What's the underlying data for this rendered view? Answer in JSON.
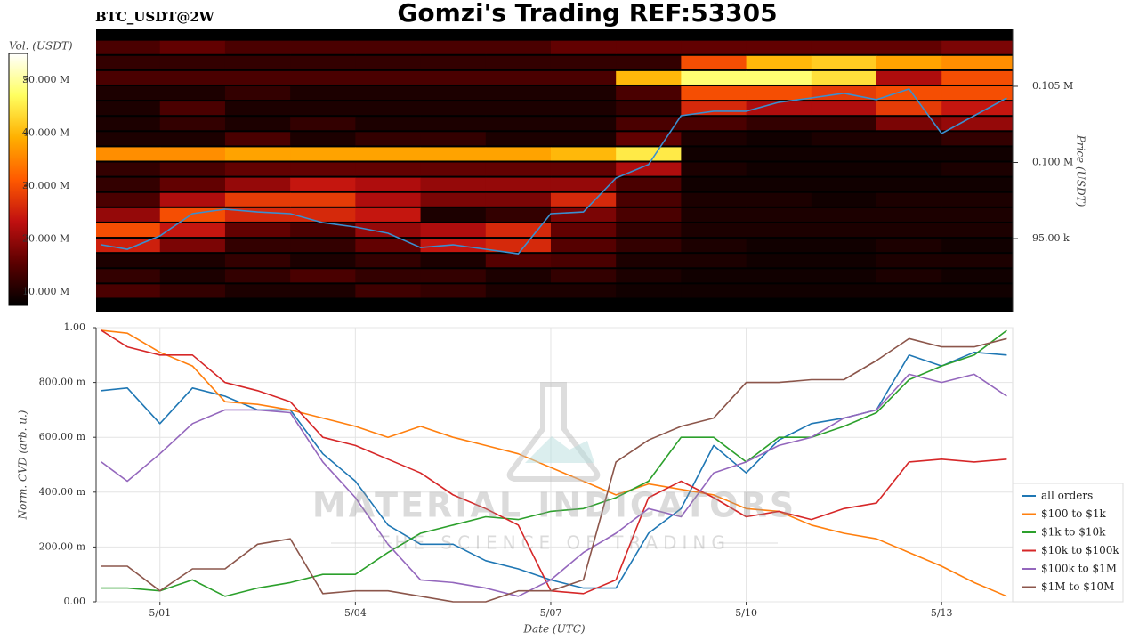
{
  "chart_data": [
    {
      "type": "heatmap",
      "title": "Gomzi's Trading REF:53305",
      "subtitle": "BTC_USDT@2W",
      "ylabel": "Price (USDT)",
      "colorbar_label": "Vol. (USDT)",
      "xlim": [
        0.02,
        14.09
      ],
      "ylim": [
        90150,
        108740
      ],
      "yticks": [
        {
          "value": 95000,
          "label": "95.00 k"
        },
        {
          "value": 100000,
          "label": "0.100 M"
        },
        {
          "value": 105000,
          "label": "0.105 M"
        }
      ],
      "clim": [
        7.5,
        55
      ],
      "colorbar_ticks": [
        {
          "value": 10,
          "label": "10.000 M"
        },
        {
          "value": 20,
          "label": "20.000 M"
        },
        {
          "value": 30,
          "label": "30.000 M"
        },
        {
          "value": 40,
          "label": "40.000 M"
        },
        {
          "value": 50,
          "label": "50.000 M"
        }
      ],
      "colormap": [
        "#000000",
        "#5a0000",
        "#c01010",
        "#ff5a00",
        "#ffb000",
        "#ffff60",
        "#ffffff"
      ],
      "x_bins": [
        0.02,
        1,
        2,
        3,
        4,
        5,
        6,
        7,
        8,
        9,
        10,
        11,
        12,
        13,
        14.09
      ],
      "y_bins": [
        91000,
        92000,
        93000,
        94000,
        95000,
        96000,
        97000,
        98000,
        99000,
        100000,
        101000,
        102000,
        103000,
        104000,
        105000,
        106000,
        107000,
        108000
      ],
      "z": [
        [
          14,
          12,
          10,
          10,
          13,
          12,
          10,
          10,
          9,
          9,
          9,
          9,
          9,
          9
        ],
        [
          12,
          10,
          12,
          14,
          12,
          12,
          10,
          12,
          10,
          9,
          9,
          9,
          10,
          9
        ],
        [
          10,
          10,
          12,
          10,
          12,
          10,
          15,
          14,
          10,
          10,
          9,
          9,
          10,
          10
        ],
        [
          25,
          18,
          12,
          12,
          16,
          24,
          26,
          15,
          12,
          10,
          9,
          9,
          10,
          9
        ],
        [
          30,
          24,
          16,
          14,
          20,
          22,
          26,
          16,
          12,
          10,
          10,
          10,
          10,
          10
        ],
        [
          20,
          30,
          26,
          26,
          24,
          10,
          12,
          18,
          14,
          10,
          10,
          10,
          10,
          10
        ],
        [
          14,
          22,
          28,
          28,
          22,
          18,
          18,
          26,
          14,
          10,
          10,
          9,
          10,
          10
        ],
        [
          12,
          16,
          20,
          24,
          22,
          20,
          20,
          20,
          14,
          9,
          9,
          9,
          9,
          9
        ],
        [
          12,
          14,
          16,
          16,
          16,
          16,
          16,
          16,
          22,
          10,
          9,
          9,
          9,
          10
        ],
        [
          36,
          36,
          38,
          38,
          38,
          38,
          38,
          40,
          45,
          9,
          9,
          9,
          9,
          9
        ],
        [
          10,
          10,
          14,
          10,
          12,
          12,
          10,
          10,
          16,
          10,
          9,
          10,
          10,
          12
        ],
        [
          10,
          12,
          10,
          12,
          10,
          10,
          10,
          10,
          14,
          14,
          12,
          12,
          18,
          20
        ],
        [
          10,
          14,
          10,
          10,
          10,
          10,
          10,
          10,
          12,
          26,
          22,
          22,
          28,
          24
        ],
        [
          10,
          10,
          12,
          10,
          10,
          10,
          10,
          10,
          14,
          30,
          30,
          28,
          30,
          30
        ],
        [
          14,
          14,
          14,
          14,
          14,
          14,
          14,
          14,
          40,
          48,
          48,
          44,
          22,
          30
        ],
        [
          12,
          12,
          12,
          12,
          12,
          12,
          12,
          12,
          12,
          30,
          40,
          42,
          38,
          36
        ],
        [
          14,
          16,
          14,
          14,
          14,
          14,
          14,
          16,
          16,
          16,
          16,
          16,
          16,
          18
        ]
      ],
      "line": {
        "color": "#3a8fd0",
        "x": [
          0.1,
          0.5,
          1,
          1.5,
          2,
          2.5,
          3,
          3.5,
          4,
          4.5,
          5,
          5.5,
          6,
          6.5,
          7,
          7.5,
          8,
          8.5,
          9,
          9.5,
          10,
          10.5,
          11,
          11.5,
          12,
          12.5,
          13,
          13.5,
          14
        ],
        "values": [
          94590,
          94300,
          95180,
          96640,
          96930,
          96750,
          96640,
          96050,
          95760,
          95350,
          94410,
          94590,
          94300,
          94000,
          96640,
          96750,
          98980,
          99860,
          103070,
          103370,
          103370,
          103950,
          104240,
          104540,
          104130,
          104830,
          101900,
          103070,
          104240
        ]
      }
    },
    {
      "type": "line",
      "xlabel": "Date (UTC)",
      "ylabel": "Norm. CVD (arb. u.)",
      "xlim": [
        0.02,
        14.09
      ],
      "ylim": [
        0,
        1
      ],
      "xticks": [
        {
          "value": 1,
          "label": "5/01"
        },
        {
          "value": 4,
          "label": "5/04"
        },
        {
          "value": 7,
          "label": "5/07"
        },
        {
          "value": 10,
          "label": "5/10"
        },
        {
          "value": 13,
          "label": "5/13"
        }
      ],
      "yticks": [
        {
          "value": 0,
          "label": "0.00"
        },
        {
          "value": 0.2,
          "label": "200.00 m"
        },
        {
          "value": 0.4,
          "label": "400.00 m"
        },
        {
          "value": 0.6,
          "label": "600.00 m"
        },
        {
          "value": 0.8,
          "label": "800.00 m"
        },
        {
          "value": 1,
          "label": "1.00"
        }
      ],
      "grid": true,
      "legend": "lower right",
      "watermark": {
        "title": "MATERIAL INDICATORS",
        "subtitle": "THE SCIENCE OF TRADING"
      },
      "x": [
        0.1,
        0.5,
        1,
        1.5,
        2,
        2.5,
        3,
        3.5,
        4,
        4.5,
        5,
        5.5,
        6,
        6.5,
        7,
        7.5,
        8,
        8.5,
        9,
        9.5,
        10,
        10.5,
        11,
        11.5,
        12,
        12.5,
        13,
        13.5,
        14
      ],
      "series": [
        {
          "name": "all orders",
          "color": "#1f77b4",
          "values": [
            0.77,
            0.78,
            0.65,
            0.78,
            0.75,
            0.7,
            0.7,
            0.54,
            0.44,
            0.28,
            0.21,
            0.21,
            0.15,
            0.12,
            0.08,
            0.05,
            0.05,
            0.25,
            0.34,
            0.57,
            0.47,
            0.59,
            0.65,
            0.67,
            0.7,
            0.9,
            0.86,
            0.91,
            0.9
          ]
        },
        {
          "name": "$100 to $1k",
          "color": "#ff7f0e",
          "values": [
            0.99,
            0.98,
            0.91,
            0.86,
            0.73,
            0.72,
            0.7,
            0.67,
            0.64,
            0.6,
            0.64,
            0.6,
            0.57,
            0.54,
            0.49,
            0.44,
            0.39,
            0.43,
            0.41,
            0.39,
            0.34,
            0.33,
            0.28,
            0.25,
            0.23,
            0.18,
            0.13,
            0.07,
            0.02
          ]
        },
        {
          "name": "$1k to $10k",
          "color": "#2ca02c",
          "values": [
            0.05,
            0.05,
            0.04,
            0.08,
            0.02,
            0.05,
            0.07,
            0.1,
            0.1,
            0.18,
            0.25,
            0.28,
            0.31,
            0.3,
            0.33,
            0.34,
            0.38,
            0.44,
            0.6,
            0.6,
            0.51,
            0.6,
            0.6,
            0.64,
            0.69,
            0.81,
            0.86,
            0.9,
            0.99
          ]
        },
        {
          "name": "$10k to $100k",
          "color": "#d62728",
          "values": [
            0.99,
            0.93,
            0.9,
            0.9,
            0.8,
            0.77,
            0.73,
            0.6,
            0.57,
            0.52,
            0.47,
            0.39,
            0.34,
            0.28,
            0.04,
            0.03,
            0.08,
            0.38,
            0.44,
            0.38,
            0.31,
            0.33,
            0.3,
            0.34,
            0.36,
            0.51,
            0.52,
            0.51,
            0.52
          ]
        },
        {
          "name": "$100k to $1M",
          "color": "#9467bd",
          "values": [
            0.51,
            0.44,
            0.54,
            0.65,
            0.7,
            0.7,
            0.69,
            0.51,
            0.38,
            0.21,
            0.08,
            0.07,
            0.05,
            0.02,
            0.08,
            0.18,
            0.25,
            0.34,
            0.31,
            0.47,
            0.51,
            0.57,
            0.6,
            0.67,
            0.7,
            0.83,
            0.8,
            0.83,
            0.75
          ]
        },
        {
          "name": "$1M to $10M",
          "color": "#8c564b",
          "values": [
            0.13,
            0.13,
            0.04,
            0.12,
            0.12,
            0.21,
            0.23,
            0.03,
            0.04,
            0.04,
            0.02,
            0,
            0,
            0.04,
            0.04,
            0.08,
            0.51,
            0.59,
            0.64,
            0.67,
            0.8,
            0.8,
            0.81,
            0.81,
            0.88,
            0.96,
            0.93,
            0.93,
            0.96
          ]
        }
      ]
    }
  ]
}
